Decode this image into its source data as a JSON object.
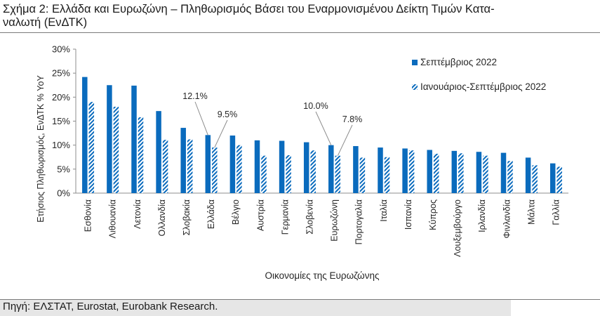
{
  "header": {
    "title": "Σχήμα 2: Ελλάδα και Ευρωζώνη – Πληθωρισμός Βάσει του Εναρμονισμένου Δείκτη Τιμών Κατα-",
    "title_line2": "ναλωτή (ΕνΔΤΚ)"
  },
  "footer": {
    "source": "Πηγή: ΕΛΣΤΑΤ, Eurostat, Eurobank Research."
  },
  "colors": {
    "series1": "#0a6bbd",
    "series2": "#0a6bbd",
    "hatch_bg": "#ffffff"
  },
  "chart_data": {
    "type": "bar",
    "xlabel": "Οικονομίες της Ευρωζώνης",
    "ylabel": "Ετήσιος Πληθωρισμός, ΕνΔΤΚ % YoY",
    "ylim": [
      0,
      30
    ],
    "yticks": [
      "0%",
      "5%",
      "10%",
      "15%",
      "20%",
      "25%",
      "30%"
    ],
    "ytick_values": [
      0,
      5,
      10,
      15,
      20,
      25,
      30
    ],
    "grid": false,
    "legend": "top-right",
    "categories": [
      "Εσθονία",
      "Λιθουανία",
      "Λετονία",
      "Ολλανδία",
      "Σλοβακία",
      "Ελλάδα",
      "Βέλγιο",
      "Αυστρία",
      "Γερμανία",
      "Σλοβενία",
      "Ευρωζώνη",
      "Πορτογαλία",
      "Ιταλία",
      "Ισπανία",
      "Κύπρος",
      "Λουξεμβούργο",
      "Ιρλανδία",
      "Φινλανδία",
      "Μάλτα",
      "Γαλλία"
    ],
    "series": [
      {
        "name": "Σεπτέμβριος 2022",
        "pattern": "solid",
        "values": [
          24.2,
          22.5,
          22.4,
          17.1,
          13.6,
          12.1,
          12.0,
          11.0,
          10.9,
          10.6,
          10.0,
          9.8,
          9.5,
          9.3,
          9.0,
          8.8,
          8.6,
          8.4,
          7.4,
          6.2
        ]
      },
      {
        "name": "Ιανουάριος-Σεπτέμβριος 2022",
        "pattern": "hatched",
        "values": [
          19.0,
          18.0,
          15.8,
          11.1,
          11.2,
          9.5,
          10.0,
          7.8,
          7.9,
          8.9,
          7.8,
          7.4,
          7.5,
          8.9,
          8.2,
          8.3,
          7.8,
          6.7,
          5.8,
          5.5
        ]
      }
    ],
    "annotations": [
      {
        "text": "12.1%",
        "category": "Ελλάδα",
        "series": 0
      },
      {
        "text": "9.5%",
        "category": "Ελλάδα",
        "series": 1
      },
      {
        "text": "10.0%",
        "category": "Ευρωζώνη",
        "series": 0
      },
      {
        "text": "7.8%",
        "category": "Ευρωζώνη",
        "series": 1
      }
    ]
  }
}
